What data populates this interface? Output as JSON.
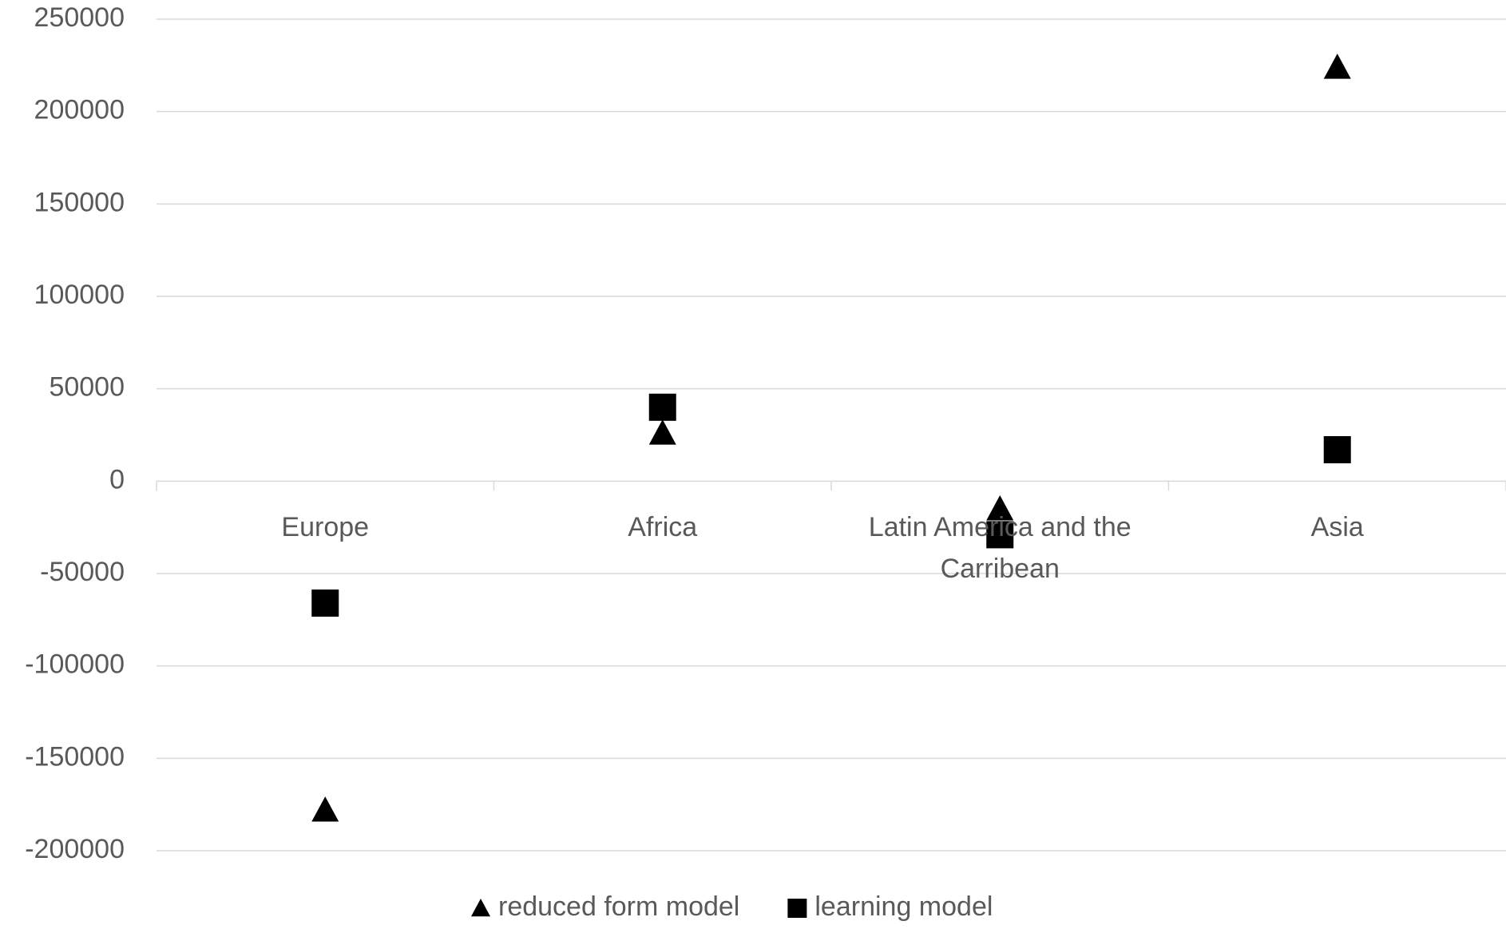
{
  "chart_data": {
    "type": "scatter",
    "categories": [
      "Europe",
      "Africa",
      "Latin America and the Carribean",
      "Asia"
    ],
    "series": [
      {
        "name": "reduced form model",
        "color": "#000000",
        "marker": "triangle",
        "values": [
          -178000,
          26000,
          -15000,
          224000
        ]
      },
      {
        "name": "learning model",
        "color": "#000000",
        "marker": "square",
        "values": [
          -66000,
          40000,
          -29000,
          17000
        ]
      }
    ],
    "ylim": [
      -200000,
      250000
    ],
    "yticks": [
      -200000,
      -150000,
      -100000,
      -50000,
      0,
      50000,
      100000,
      150000,
      200000,
      250000
    ],
    "grid": true,
    "legend": "bottom"
  }
}
